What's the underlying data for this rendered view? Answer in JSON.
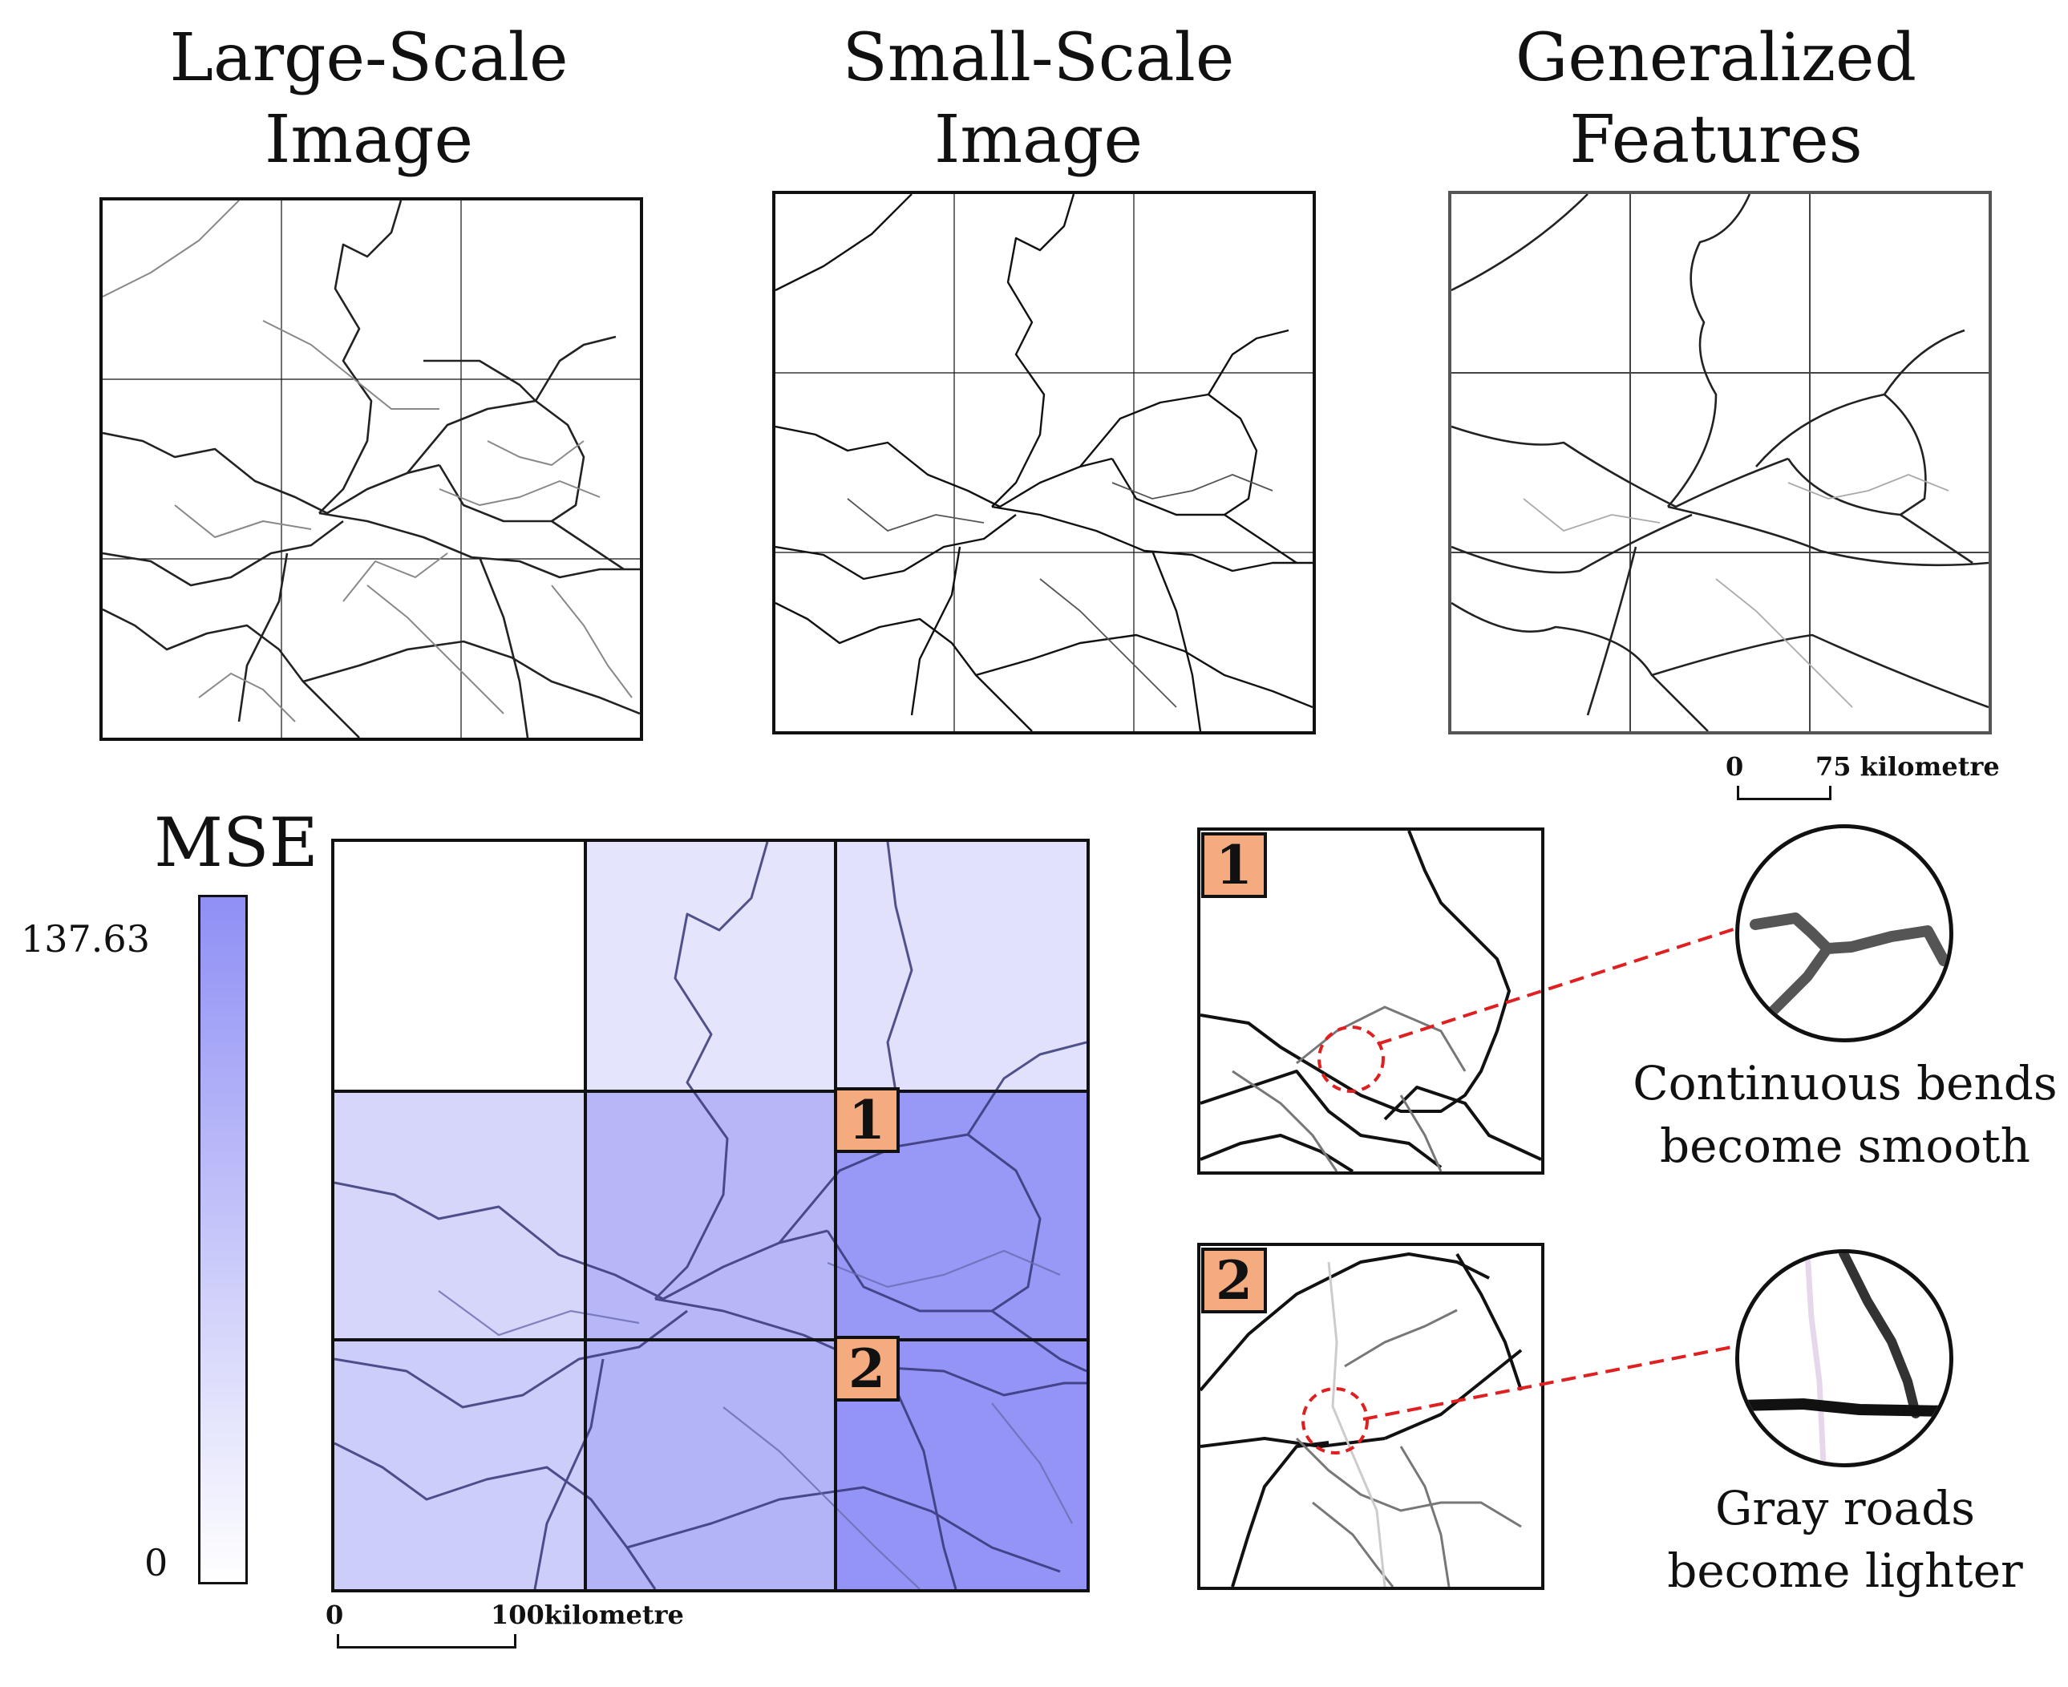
{
  "titles": {
    "large_scale": [
      "Large-Scale",
      "Image"
    ],
    "small_scale": [
      "Small-Scale",
      "Image"
    ],
    "generalized": [
      "Generalized",
      "Features"
    ]
  },
  "scale_top": {
    "start": "0",
    "end": "75 kilometre"
  },
  "scale_bottom": {
    "start": "0",
    "end": "100kilometre"
  },
  "legend": {
    "title": "MSE",
    "max": "137.63",
    "min": "0",
    "color_high": "#8f8ff5",
    "color_low": "#ffffff"
  },
  "badges": {
    "one": "1",
    "two": "2"
  },
  "captions": {
    "one": [
      "Continuous bends",
      "become smooth"
    ],
    "two": [
      "Gray roads",
      "become lighter"
    ]
  },
  "colors": {
    "badge": "#f5ab80",
    "leader": "#e02020"
  }
}
